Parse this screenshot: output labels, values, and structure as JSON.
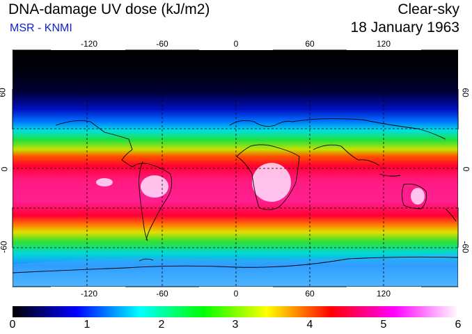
{
  "header": {
    "title": "DNA-damage UV dose (kJ/m2)",
    "credit": "MSR - KNMI",
    "mode": "Clear-sky",
    "date": "18 January 1963"
  },
  "map": {
    "lon_labels": [
      "-120",
      "-60",
      "0",
      "60",
      "120"
    ],
    "lat_labels": [
      "60",
      "0",
      "-60"
    ]
  },
  "colorbar": {
    "labels": [
      "0",
      "1",
      "2",
      "3",
      "4",
      "5",
      "6"
    ],
    "colors": [
      "#000000",
      "#0000ff",
      "#00ffff",
      "#00ff00",
      "#ffff00",
      "#ff0000",
      "#ff00ff",
      "#ffffff"
    ]
  }
}
